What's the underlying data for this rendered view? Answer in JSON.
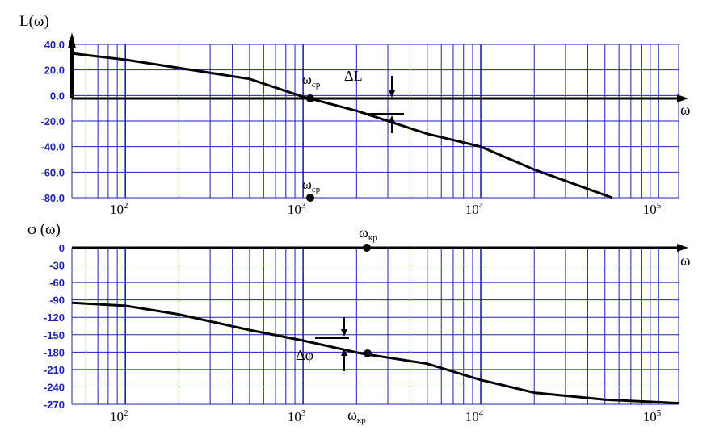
{
  "colors": {
    "grid": "#1e22b4",
    "axis_text": "#1e22b4",
    "curve": "#000000",
    "axis": "#000000",
    "background": "#ffffff"
  },
  "chart_data": [
    {
      "type": "line",
      "ylabel": "L(ω)",
      "xlabel": "ω",
      "xscale": "log",
      "xlim": [
        50,
        130000
      ],
      "ylim": [
        -80,
        40
      ],
      "yticks": [
        "40.0",
        "20.0",
        "0.0",
        "-20.0",
        "-40.0",
        "-60.0",
        "-80.0"
      ],
      "xticks": [
        {
          "value": 100,
          "base": "10",
          "exp": "2"
        },
        {
          "value": 1000,
          "base": "10",
          "exp": "3"
        },
        {
          "value": 10000,
          "base": "10",
          "exp": "4"
        },
        {
          "value": 100000,
          "base": "10",
          "exp": "5"
        }
      ],
      "grid": true,
      "series": [
        {
          "x": [
            50,
            100,
            500,
            1000,
            2000,
            5000,
            10000,
            20000,
            55000
          ],
          "y": [
            33,
            28,
            13,
            -1,
            -12,
            -30,
            -40,
            -58,
            -80
          ]
        }
      ],
      "annotations": {
        "crossover_label": "ω",
        "crossover_sub": "ср",
        "margin_label": "ΔL",
        "crossover_x": 1050
      }
    },
    {
      "type": "line",
      "ylabel": "φ (ω)",
      "xlabel": "ω",
      "xscale": "log",
      "xlim": [
        50,
        130000
      ],
      "ylim": [
        -270,
        0
      ],
      "yticks": [
        "0",
        "-30",
        "-60",
        "-90",
        "-120",
        "-150",
        "-180",
        "-210",
        "-240",
        "-270"
      ],
      "xticks": [
        {
          "value": 100,
          "base": "10",
          "exp": "2"
        },
        {
          "value": 1000,
          "base": "10",
          "exp": "3"
        },
        {
          "value": 10000,
          "base": "10",
          "exp": "4"
        },
        {
          "value": 100000,
          "base": "10",
          "exp": "5"
        }
      ],
      "grid": true,
      "series": [
        {
          "x": [
            50,
            100,
            200,
            500,
            1000,
            2100,
            5000,
            10000,
            20000,
            50000,
            130000
          ],
          "y": [
            -95,
            -100,
            -115,
            -142,
            -160,
            -182,
            -200,
            -228,
            -250,
            -262,
            -268
          ]
        }
      ],
      "annotations": {
        "critical_label": "ω",
        "critical_sub": "кр",
        "margin_label": "Δφ",
        "critical_x": 2100
      }
    }
  ]
}
